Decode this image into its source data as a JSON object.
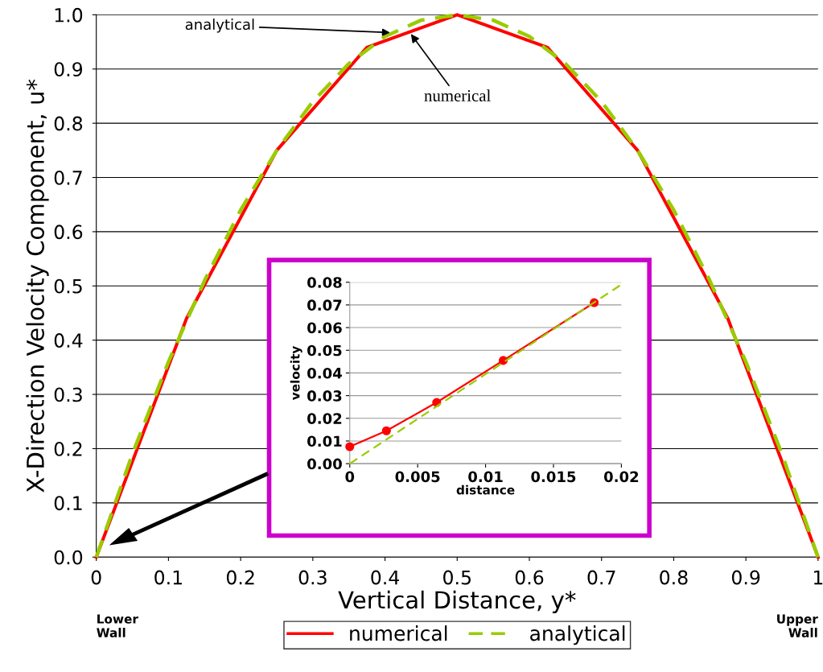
{
  "chart_data": [
    {
      "type": "line",
      "xlabel": "Vertical Distance, y*",
      "ylabel": "X-Direction Velocity Component, u*",
      "xlim": [
        0,
        1
      ],
      "xticks": [
        0,
        0.1,
        0.2,
        0.3,
        0.4,
        0.5,
        0.6,
        0.7,
        0.8,
        0.9,
        1
      ],
      "ylim": [
        0.0,
        1.0
      ],
      "yticks": [
        {
          "value": 0,
          "label": "0.0"
        },
        0.1,
        0.2,
        0.3,
        0.4,
        0.5,
        0.6,
        0.7,
        0.8,
        0.9,
        {
          "value": 1,
          "label": "1.0"
        }
      ],
      "grid": "y",
      "legend": "bottom",
      "marker": "none",
      "series": [
        {
          "name": "numerical",
          "color": "#ff0000",
          "line_style": "solid",
          "x": [
            0,
            0.125,
            0.25,
            0.375,
            0.5,
            0.625,
            0.75,
            0.875,
            1
          ],
          "values": [
            0.0,
            0.44,
            0.75,
            0.94,
            1.0,
            0.94,
            0.75,
            0.44,
            0.0
          ]
        },
        {
          "name": "analytical",
          "color": "#99cc00",
          "line_style": "dashed",
          "x": [
            0,
            0.05,
            0.1,
            0.15,
            0.2,
            0.25,
            0.3,
            0.35,
            0.4,
            0.45,
            0.5,
            0.55,
            0.6,
            0.65,
            0.7,
            0.75,
            0.8,
            0.85,
            0.9,
            0.95,
            1
          ],
          "values": [
            0.0,
            0.19,
            0.36,
            0.51,
            0.64,
            0.75,
            0.84,
            0.91,
            0.96,
            0.99,
            1.0,
            0.99,
            0.96,
            0.91,
            0.84,
            0.75,
            0.64,
            0.51,
            0.36,
            0.19,
            0.0
          ]
        }
      ],
      "annotations": [
        {
          "text": "analytical",
          "x": 0.41,
          "y": 0.967
        },
        {
          "text": "numerical",
          "x": 0.434,
          "y": 0.968
        },
        "Lower\nWall",
        "Upper\nWall"
      ]
    },
    {
      "type": "line",
      "xlabel": "distance",
      "ylabel": "velocity",
      "xlim": [
        0,
        0.02
      ],
      "xticks": [
        0,
        0.005,
        0.01,
        0.015,
        0.02
      ],
      "ylim": [
        0.0,
        0.08
      ],
      "yticks": [
        {
          "value": 0,
          "label": "0.00"
        },
        {
          "value": 0.01,
          "label": "0.01"
        },
        {
          "value": 0.02,
          "label": "0.02"
        },
        {
          "value": 0.03,
          "label": "0.03"
        },
        {
          "value": 0.04,
          "label": "0.04"
        },
        {
          "value": 0.05,
          "label": "0.05"
        },
        {
          "value": 0.06,
          "label": "0.06"
        },
        {
          "value": 0.07,
          "label": "0.07"
        },
        {
          "value": 0.08,
          "label": "0.08"
        }
      ],
      "grid": "y",
      "legend": false,
      "series": [
        {
          "color": "#ff0000",
          "line_style": "solid",
          "marker": "circle",
          "x": [
            0,
            0.0027,
            0.0064,
            0.0113,
            0.018
          ],
          "values": [
            0.0075,
            0.0145,
            0.027,
            0.0455,
            0.071
          ]
        },
        {
          "color": "#99cc00",
          "line_style": "dashed",
          "marker": "none",
          "x": [
            0,
            0.02
          ],
          "values": [
            0.0,
            0.079
          ]
        }
      ]
    }
  ]
}
